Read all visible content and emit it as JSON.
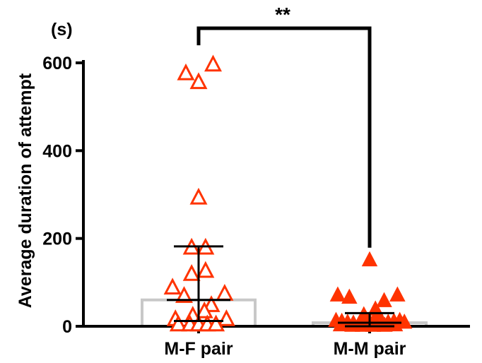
{
  "chart_data": {
    "type": "scatter",
    "unit_label": "(s)",
    "ylabel": "Average duration of attempt",
    "xlabel": "",
    "ylim": [
      0,
      620
    ],
    "yticks": [
      0,
      200,
      400,
      600
    ],
    "categories": [
      "M-F pair",
      "M-M pair"
    ],
    "significance": "**",
    "series": [
      {
        "category": "M-F pair",
        "marker": "triangle-open",
        "color": "#ff3300",
        "bar_value": 60,
        "mean": 60,
        "error_low": 12,
        "error_high": 182,
        "points": [
          {
            "offset": -0.22,
            "value": 575
          },
          {
            "offset": 0.0,
            "value": 555
          },
          {
            "offset": 0.25,
            "value": 595
          },
          {
            "offset": 0.0,
            "value": 292
          },
          {
            "offset": -0.12,
            "value": 178
          },
          {
            "offset": 0.12,
            "value": 178
          },
          {
            "offset": -0.12,
            "value": 118
          },
          {
            "offset": 0.12,
            "value": 125
          },
          {
            "offset": -0.45,
            "value": 87
          },
          {
            "offset": -0.25,
            "value": 68
          },
          {
            "offset": 0.45,
            "value": 73
          },
          {
            "offset": 0.22,
            "value": 47
          },
          {
            "offset": 0.1,
            "value": 33
          },
          {
            "offset": -0.4,
            "value": 15
          },
          {
            "offset": -0.1,
            "value": 23
          },
          {
            "offset": 0.48,
            "value": 15
          },
          {
            "offset": -0.35,
            "value": 3
          },
          {
            "offset": -0.15,
            "value": 3
          },
          {
            "offset": 0.0,
            "value": 3
          },
          {
            "offset": 0.15,
            "value": 3
          },
          {
            "offset": 0.3,
            "value": 3
          }
        ]
      },
      {
        "category": "M-M pair",
        "marker": "triangle-filled",
        "color": "#ff3300",
        "bar_value": 8,
        "mean": 8,
        "error_low": 0,
        "error_high": 30,
        "points": [
          {
            "offset": 0.0,
            "value": 150
          },
          {
            "offset": -0.55,
            "value": 70
          },
          {
            "offset": -0.35,
            "value": 65
          },
          {
            "offset": 0.48,
            "value": 70
          },
          {
            "offset": 0.25,
            "value": 57
          },
          {
            "offset": 0.1,
            "value": 38
          },
          {
            "offset": 0.14,
            "value": 28
          },
          {
            "offset": -0.1,
            "value": 25
          },
          {
            "offset": -0.58,
            "value": 12
          },
          {
            "offset": -0.48,
            "value": 10
          },
          {
            "offset": -0.38,
            "value": 8
          },
          {
            "offset": -0.28,
            "value": 6
          },
          {
            "offset": -0.18,
            "value": 5
          },
          {
            "offset": -0.08,
            "value": 4
          },
          {
            "offset": 0.02,
            "value": 4
          },
          {
            "offset": 0.12,
            "value": 5
          },
          {
            "offset": 0.22,
            "value": 6
          },
          {
            "offset": 0.32,
            "value": 8
          },
          {
            "offset": 0.42,
            "value": 10
          },
          {
            "offset": 0.52,
            "value": 12
          },
          {
            "offset": 0.6,
            "value": 8
          },
          {
            "offset": -0.5,
            "value": 2
          },
          {
            "offset": -0.3,
            "value": 1
          },
          {
            "offset": -0.12,
            "value": 1
          },
          {
            "offset": 0.06,
            "value": 1
          },
          {
            "offset": 0.26,
            "value": 1
          },
          {
            "offset": 0.44,
            "value": 2
          }
        ]
      }
    ]
  }
}
